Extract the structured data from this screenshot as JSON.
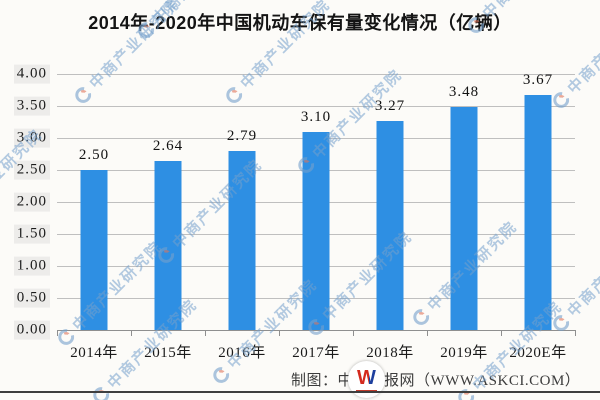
{
  "title": "2014年-2020年中国机动车保有量变化情况（亿辆）",
  "chart_data": {
    "type": "bar",
    "title": "2014年-2020年中国机动车保有量变化情况（亿辆）",
    "categories": [
      "2014年",
      "2015年",
      "2016年",
      "2017年",
      "2018年",
      "2019年",
      "2020E年"
    ],
    "values": [
      2.5,
      2.64,
      2.79,
      3.1,
      3.27,
      3.48,
      3.67
    ],
    "value_labels": [
      "2.50",
      "2.64",
      "2.79",
      "3.10",
      "3.27",
      "3.48",
      "3.67"
    ],
    "unit": "亿辆",
    "ylim": [
      0,
      4
    ],
    "ytick_step": 0.5,
    "ytick_labels_top_to_bottom": [
      "4.00",
      "3.50",
      "3.00",
      "2.50",
      "2.00",
      "1.50",
      "1.00",
      "0.50",
      "0.00"
    ],
    "grid": true,
    "legend": null,
    "bar_color": "#2E8FE3"
  },
  "footer": {
    "credit": "制图：中商情报网（WWW.ASKCI.COM）",
    "logo_letter": "W"
  },
  "watermark": {
    "text": "中商产业研究院"
  },
  "colors": {
    "background": "#fcfbf8",
    "bar": "#2E8FE3",
    "gridline": "#bfbfbf",
    "axis_line": "#8f8f8f",
    "title_text": "#141414",
    "watermark_blue": "#74a0cc",
    "watermark_red": "#e0745a",
    "logo_red": "#d42a1e",
    "logo_blue": "#1d3f9e",
    "bottom_border": "#3f3f3f"
  }
}
